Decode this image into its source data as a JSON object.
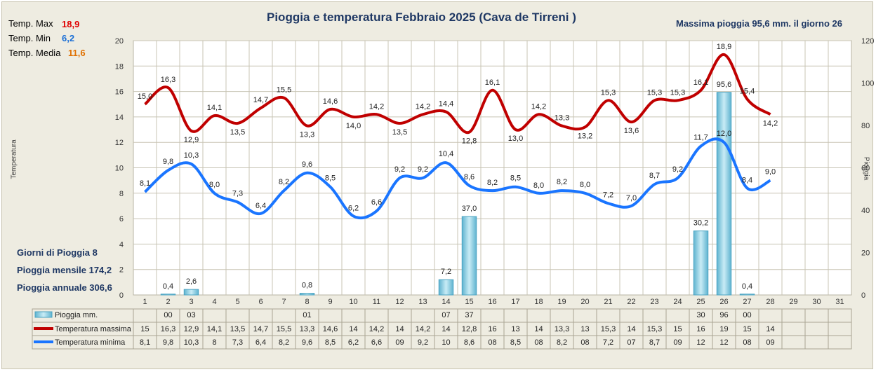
{
  "header": {
    "title": "Pioggia e temperatura Febbraio 2025 (Cava de Tirreni )",
    "max_rain": "Massima pioggia  95,6 mm. il giorno 26"
  },
  "stats": {
    "tmax_label": "Temp. Max",
    "tmax_value": "18,9",
    "tmin_label": "Temp. Min",
    "tmin_value": "6,2",
    "tmed_label": "Temp. Media",
    "tmed_value": "11,6"
  },
  "summary": {
    "rain_days": "Giorni di Pioggia  8",
    "rain_month": "Pioggia mensile   174,2",
    "rain_year": "Pioggia annuale  306,6"
  },
  "colors": {
    "max": "#c00000",
    "min": "#1a75ff",
    "bar": "#9fd4e6",
    "bar_edge": "#4aa3c2",
    "grid": "#c8c4b4"
  },
  "chart_data": {
    "type": "bar+line",
    "y_left_label": "Temperatura",
    "y_right_label": "Pioggia",
    "ylim_left": [
      0,
      20
    ],
    "ylim_right": [
      0,
      120
    ],
    "y_left_ticks": [
      "0",
      "2",
      "4",
      "6",
      "8",
      "10",
      "12",
      "14",
      "16",
      "18",
      "20"
    ],
    "y_right_ticks": [
      "0",
      "20",
      "40",
      "60",
      "80",
      "100",
      "120"
    ],
    "categories": [
      "1",
      "2",
      "3",
      "4",
      "5",
      "6",
      "7",
      "8",
      "9",
      "10",
      "11",
      "12",
      "13",
      "14",
      "15",
      "16",
      "17",
      "18",
      "19",
      "20",
      "21",
      "22",
      "23",
      "24",
      "25",
      "26",
      "27",
      "28",
      "29",
      "30",
      "31"
    ],
    "grid": true,
    "rain": {
      "name": "Pioggia mm.",
      "values": [
        null,
        0.4,
        2.6,
        null,
        null,
        null,
        null,
        0.8,
        null,
        null,
        null,
        null,
        null,
        7.2,
        37.0,
        null,
        null,
        null,
        null,
        null,
        null,
        null,
        null,
        null,
        30.2,
        95.6,
        0.4,
        null,
        null,
        null,
        null
      ],
      "labels": [
        "",
        "0,4",
        "2,6",
        "",
        "",
        "",
        "",
        "0,8",
        "",
        "",
        "",
        "",
        "",
        "7,2",
        "37,0",
        "",
        "",
        "",
        "",
        "",
        "",
        "",
        "",
        "",
        "30,2",
        "95,6",
        "0,4",
        "",
        "",
        "",
        ""
      ]
    },
    "tmax": {
      "name": "Temperatura massima",
      "values": [
        15.0,
        16.3,
        12.9,
        14.1,
        13.5,
        14.7,
        15.5,
        13.3,
        14.6,
        14.0,
        14.2,
        13.5,
        14.2,
        14.4,
        12.8,
        16.1,
        13.0,
        14.2,
        13.3,
        13.2,
        15.3,
        13.6,
        15.3,
        15.3,
        16.1,
        18.9,
        15.4,
        14.2
      ],
      "labels": [
        "15,0",
        "16,3",
        "12,9",
        "14,1",
        "13,5",
        "14,7",
        "15,5",
        "13,3",
        "14,6",
        "14,0",
        "14,2",
        "13,5",
        "14,2",
        "14,4",
        "12,8",
        "16,1",
        "13,0",
        "14,2",
        "13,3",
        "13,2",
        "15,3",
        "13,6",
        "15,3",
        "15,3",
        "16,1",
        "18,9",
        "15,4",
        "14,2"
      ]
    },
    "tmin": {
      "name": "Temperatura minima",
      "values": [
        8.1,
        9.8,
        10.3,
        8.0,
        7.3,
        6.4,
        8.2,
        9.6,
        8.5,
        6.2,
        6.6,
        9.2,
        9.2,
        10.4,
        8.6,
        8.2,
        8.5,
        8.0,
        8.2,
        8.0,
        7.2,
        7.0,
        8.7,
        9.2,
        11.7,
        12.0,
        8.4,
        9.0
      ],
      "labels": [
        "8,1",
        "9,8",
        "10,3",
        "8,0",
        "7,3",
        "6,4",
        "8,2",
        "9,6",
        "8,5",
        "6,2",
        "6,6",
        "9,2",
        "9,2",
        "10,4",
        "8,6",
        "8,2",
        "8,5",
        "8,0",
        "8,2",
        "8,0",
        "7,2",
        "7,0",
        "8,7",
        "9,2",
        "11,7",
        "12,0",
        "8,4",
        "9,0"
      ]
    },
    "table": {
      "rain": [
        "",
        "00",
        "03",
        "",
        "",
        "",
        "",
        "01",
        "",
        "",
        "",
        "",
        "",
        "07",
        "37",
        "",
        "",
        "",
        "",
        "",
        "",
        "",
        "",
        "",
        "30",
        "96",
        "00",
        "",
        "",
        "",
        ""
      ],
      "tmax": [
        "15",
        "16,3",
        "12,9",
        "14,1",
        "13,5",
        "14,7",
        "15,5",
        "13,3",
        "14,6",
        "14",
        "14,2",
        "14",
        "14,2",
        "14",
        "12,8",
        "16",
        "13",
        "14",
        "13,3",
        "13",
        "15,3",
        "14",
        "15,3",
        "15",
        "16",
        "19",
        "15",
        "14",
        "",
        "",
        ""
      ],
      "tmin": [
        "8,1",
        "9,8",
        "10,3",
        "8",
        "7,3",
        "6,4",
        "8,2",
        "9,6",
        "8,5",
        "6,2",
        "6,6",
        "09",
        "9,2",
        "10",
        "8,6",
        "08",
        "8,5",
        "08",
        "8,2",
        "08",
        "7,2",
        "07",
        "8,7",
        "09",
        "12",
        "12",
        "08",
        "09",
        "",
        "",
        ""
      ]
    }
  }
}
